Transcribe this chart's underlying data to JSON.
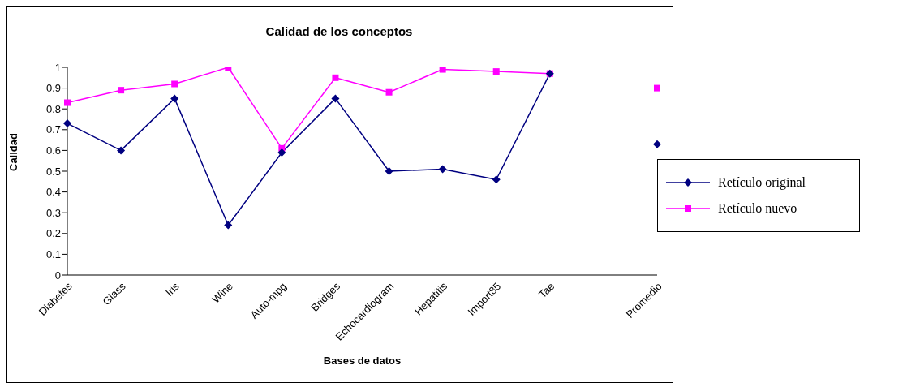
{
  "chart_data": {
    "type": "line",
    "title": "Calidad de los conceptos",
    "xlabel": "Bases de datos",
    "ylabel": "Calidad",
    "categories": [
      "Diabetes",
      "Glass",
      "Iris",
      "Wine",
      "Auto-mpg",
      "Bridges",
      "Echocardiogram",
      "Hepatitis",
      "Import85",
      "Tae",
      null,
      "Promedio"
    ],
    "series": [
      {
        "name": "Retículo original",
        "color": "#000080",
        "marker": "diamond",
        "values": [
          0.73,
          0.6,
          0.85,
          0.24,
          0.59,
          0.85,
          0.5,
          0.51,
          0.46,
          0.97,
          null,
          0.63
        ]
      },
      {
        "name": "Retículo nuevo",
        "color": "#ff00ff",
        "marker": "square",
        "values": [
          0.83,
          0.89,
          0.92,
          1.0,
          0.61,
          0.95,
          0.88,
          0.99,
          0.98,
          0.97,
          null,
          0.9
        ]
      }
    ],
    "ylim": [
      0,
      1
    ],
    "yticks": [
      0,
      0.1,
      0.2,
      0.3,
      0.4,
      0.5,
      0.6,
      0.7,
      0.8,
      0.9,
      1
    ],
    "grid": false,
    "legend": "right"
  }
}
